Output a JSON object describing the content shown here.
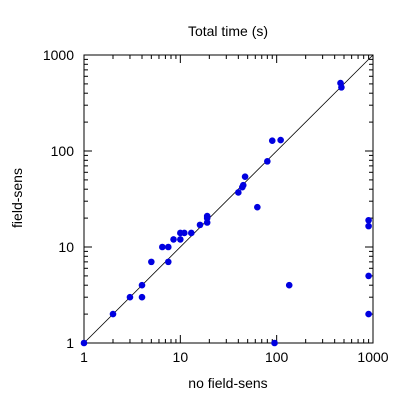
{
  "chart_data": {
    "type": "scatter",
    "title": "Total time (s)",
    "xlabel": "no field-sens",
    "ylabel": "field-sens",
    "xscale": "log",
    "yscale": "log",
    "xlim": [
      1,
      1000
    ],
    "ylim": [
      1,
      1000
    ],
    "x_ticks": [
      1,
      10,
      100,
      1000
    ],
    "x_tick_labels": [
      "1",
      "10",
      "100",
      "1000"
    ],
    "y_ticks": [
      1,
      10,
      100,
      1000
    ],
    "y_tick_labels": [
      "1",
      "10",
      "100",
      "1000"
    ],
    "grid": false,
    "reference_line": {
      "description": "y = x diagonal",
      "from": [
        1,
        1
      ],
      "to": [
        1000,
        1000
      ]
    },
    "series": [
      {
        "color": "#0000e0",
        "points": [
          [
            1,
            1
          ],
          [
            2,
            2
          ],
          [
            3,
            3
          ],
          [
            4,
            3
          ],
          [
            4,
            4
          ],
          [
            5,
            7
          ],
          [
            6.5,
            10
          ],
          [
            7.5,
            7
          ],
          [
            7.5,
            10
          ],
          [
            8.5,
            12
          ],
          [
            10,
            12
          ],
          [
            10,
            14
          ],
          [
            11,
            14
          ],
          [
            13,
            14
          ],
          [
            16,
            17
          ],
          [
            19,
            18
          ],
          [
            19,
            20
          ],
          [
            19,
            21
          ],
          [
            40,
            37
          ],
          [
            44,
            42
          ],
          [
            45,
            44
          ],
          [
            47,
            54
          ],
          [
            63,
            26
          ],
          [
            80,
            78
          ],
          [
            90,
            128
          ],
          [
            110,
            130
          ],
          [
            95,
            1
          ],
          [
            135,
            4
          ],
          [
            460,
            510
          ],
          [
            470,
            460
          ],
          [
            900,
            19
          ],
          [
            900,
            16.5
          ],
          [
            900,
            5
          ],
          [
            900,
            2
          ]
        ]
      }
    ]
  },
  "colors": {
    "point": "#0000e0",
    "axis": "#000000",
    "diagonal": "#000000"
  }
}
